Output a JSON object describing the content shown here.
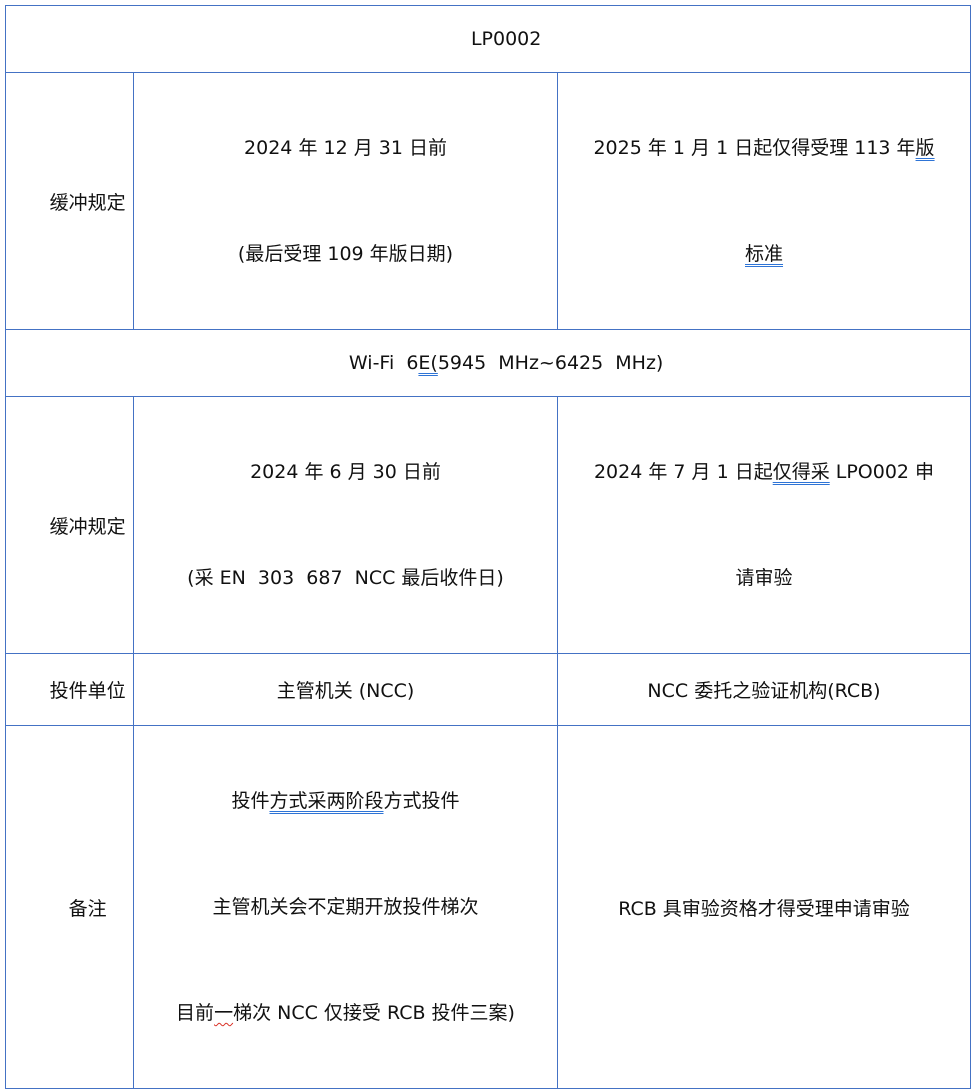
{
  "colors": {
    "table_border": "#4472C4",
    "grammar_underline_blue": "#2E74D6",
    "spellcheck_wavy_red": "#D93025",
    "text": "#111111",
    "background": "#FFFFFF"
  },
  "table": {
    "band1_title": "LP0002",
    "buffer1": {
      "label": "缓冲规定",
      "col2_line1": "2024 年 12 月 31 日前",
      "col2_line2": "(最后受理 109 年版日期)",
      "col3_line1_pre": "2025 年 1 月 1 日起仅得受理 113 年",
      "col3_line1_underlined": "版",
      "col3_line2_underlined": "标准"
    },
    "band2_title_pre": "Wi-Fi  6",
    "band2_title_underlined": "E(",
    "band2_title_post": "5945  MHz~6425  MHz)",
    "buffer2": {
      "label": "缓冲规定",
      "col2_line1": "2024 年 6 月 30 日前",
      "col2_line2": "(采 EN  303  687  NCC 最后收件日)",
      "col3_line1_pre": "2024 年 7 月 1 日起",
      "col3_line1_underlined": "仅得采",
      "col3_line1_post": " LPO002 申",
      "col3_line2": "请审验"
    },
    "submit_unit": {
      "label": "投件单位",
      "col2": "主管机关 (NCC)",
      "col3": "NCC 委托之验证机构(RCB)"
    },
    "remarks": {
      "label": "备注",
      "col2_line1_pre": "投件",
      "col2_line1_underlined": "方式采两阶段",
      "col2_line1_post": "方式投件",
      "col2_line2": "主管机关会不定期开放投件梯次",
      "col2_line3_pre": "目前",
      "col2_line3_wavy": "一",
      "col2_line3_post": "梯次 NCC 仅接受 RCB 投件三案)",
      "col3": "RCB 具审验资格才得受理申请审验"
    }
  }
}
